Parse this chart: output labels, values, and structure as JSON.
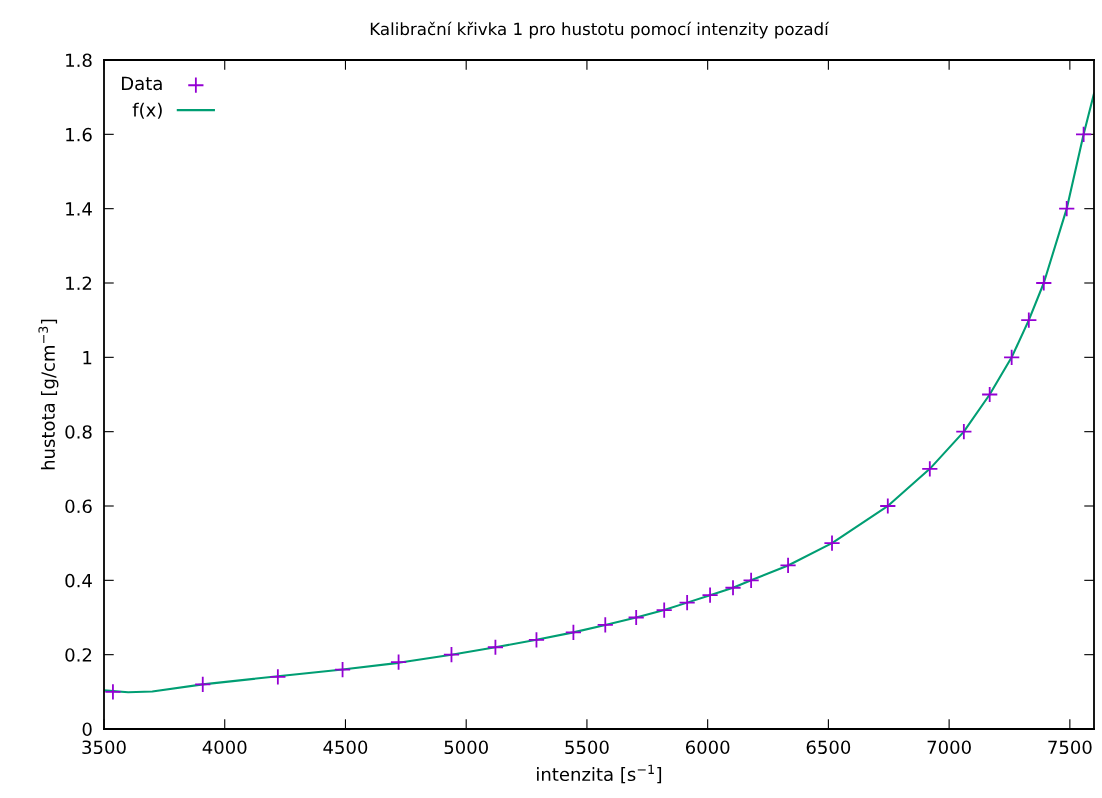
{
  "chart_data": {
    "type": "scatter",
    "title": "Kalibrační křivka 1 pro hustotu pomocí intenzity pozadí",
    "xlabel": "intenzita [s$^{−1}$]",
    "ylabel": "hustota [g/cm$^{−3}$]",
    "xlim": [
      3500,
      7600
    ],
    "ylim": [
      0,
      1.8
    ],
    "xticks": [
      3500,
      4000,
      4500,
      5000,
      5500,
      6000,
      6500,
      7000,
      7500
    ],
    "yticks": [
      0,
      0.2,
      0.4,
      0.6,
      0.8,
      1,
      1.2,
      1.4,
      1.6,
      1.8
    ],
    "grid": false,
    "legend": "top left",
    "series": [
      {
        "name": "Data",
        "marker": "cross",
        "color": "#9400d3",
        "x": [
          3537,
          3909,
          4220,
          4488,
          4720,
          4939,
          5121,
          5291,
          5444,
          5576,
          5704,
          5820,
          5915,
          6010,
          6105,
          6180,
          6333,
          6515,
          6746,
          6920,
          7061,
          7168,
          7259,
          7330,
          7392,
          7487,
          7557
        ],
        "values": [
          0.1,
          0.12,
          0.14,
          0.16,
          0.18,
          0.2,
          0.22,
          0.24,
          0.26,
          0.28,
          0.3,
          0.32,
          0.34,
          0.36,
          0.38,
          0.4,
          0.44,
          0.5,
          0.6,
          0.7,
          0.8,
          0.9,
          1.0,
          1.1,
          1.2,
          1.4,
          1.6
        ]
      },
      {
        "name": "f(x)",
        "type": "line",
        "line_style": "solid",
        "color": "#009e73",
        "x": [
          3500,
          3600,
          3700,
          3909,
          4220,
          4488,
          4720,
          4939,
          5121,
          5291,
          5444,
          5576,
          5704,
          5820,
          5915,
          6010,
          6105,
          6180,
          6333,
          6515,
          6746,
          6920,
          7061,
          7168,
          7259,
          7330,
          7392,
          7487,
          7557,
          7600
        ],
        "values": [
          0.104,
          0.099,
          0.101,
          0.12,
          0.142,
          0.16,
          0.178,
          0.2,
          0.22,
          0.24,
          0.26,
          0.28,
          0.3,
          0.32,
          0.34,
          0.36,
          0.38,
          0.4,
          0.44,
          0.5,
          0.6,
          0.7,
          0.8,
          0.9,
          1.0,
          1.1,
          1.2,
          1.4,
          1.6,
          1.71
        ]
      }
    ]
  }
}
